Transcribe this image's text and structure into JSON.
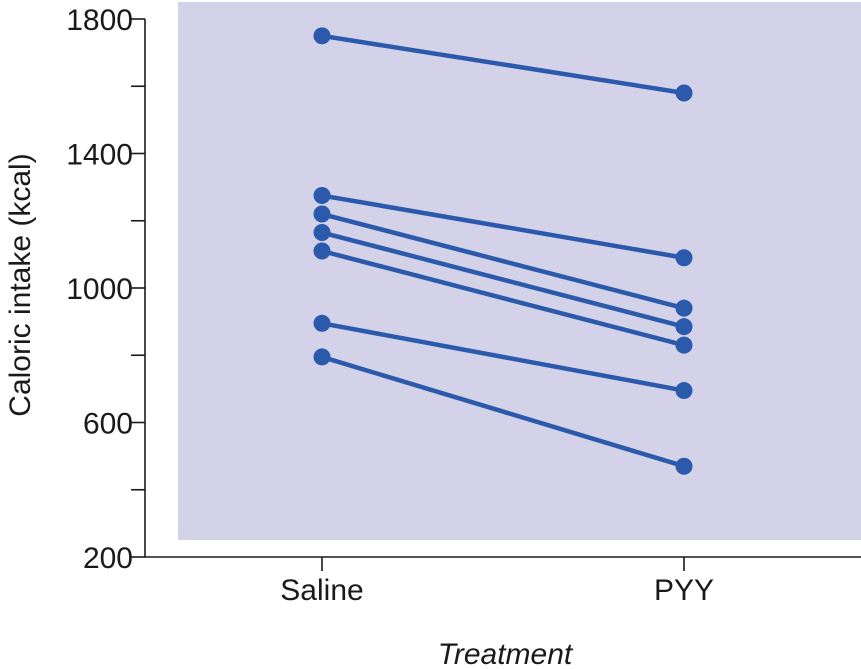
{
  "chart_data": {
    "type": "line",
    "title": "",
    "xlabel": "Treatment",
    "ylabel": "Caloric intake (kcal)",
    "categories": [
      "Saline",
      "PYY"
    ],
    "ylim": [
      200,
      1800
    ],
    "y_ticks_labeled": [
      200,
      600,
      1000,
      1400,
      1800
    ],
    "y_ticks_minor": [
      400,
      800,
      1200,
      1600
    ],
    "grid": false,
    "legend": "none",
    "colors": {
      "plot_background": "#d3d2e8",
      "series": "#2b59ab"
    },
    "series": [
      {
        "values": [
          1750,
          1580
        ]
      },
      {
        "values": [
          1275,
          1090
        ]
      },
      {
        "values": [
          1220,
          940
        ]
      },
      {
        "values": [
          1165,
          885
        ]
      },
      {
        "values": [
          1110,
          830
        ]
      },
      {
        "values": [
          895,
          695
        ]
      },
      {
        "values": [
          795,
          470
        ]
      }
    ]
  }
}
